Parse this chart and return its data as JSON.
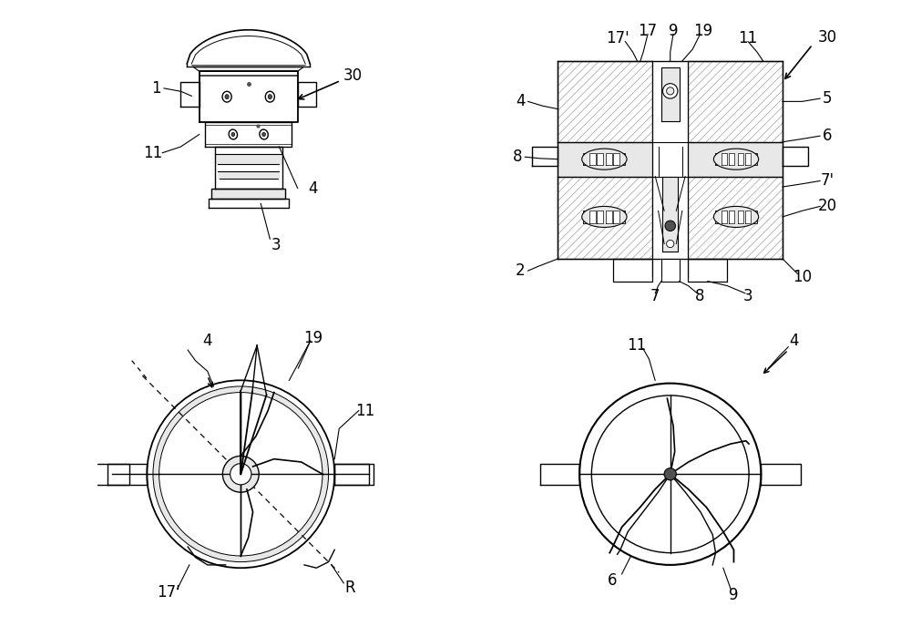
{
  "bg_color": "#ffffff",
  "lc": "#000000",
  "lg": "#e8e8e8",
  "mg": "#c0c0c0",
  "dg": "#505050",
  "hc": "#a0a0a0",
  "fs": 12,
  "fig_width": 10.0,
  "fig_height": 6.99
}
